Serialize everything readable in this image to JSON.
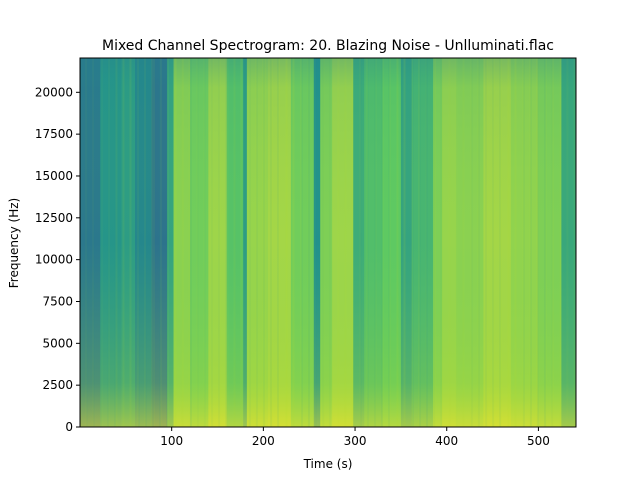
{
  "chart_data": {
    "type": "heatmap",
    "title": "Mixed Channel Spectrogram: 20. Blazing Noise - Unlluminati.flac",
    "xlabel": "Time (s)",
    "ylabel": "Frequency (Hz)",
    "xlim": [
      0,
      541
    ],
    "ylim": [
      0,
      22050
    ],
    "x_ticks": [
      100,
      200,
      300,
      400,
      500
    ],
    "x_tick_labels": [
      "100",
      "200",
      "300",
      "400",
      "500"
    ],
    "y_ticks": [
      0,
      2500,
      5000,
      7500,
      10000,
      12500,
      15000,
      17500,
      20000
    ],
    "y_tick_labels": [
      "0",
      "2500",
      "5000",
      "7500",
      "10000",
      "12500",
      "15000",
      "17500",
      "20000"
    ],
    "colormap": "viridis",
    "grid": false,
    "legend": "none",
    "time_segments": [
      {
        "start": 0,
        "end": 22,
        "level": 0.4
      },
      {
        "start": 22,
        "end": 45,
        "level": 0.52
      },
      {
        "start": 45,
        "end": 60,
        "level": 0.55
      },
      {
        "start": 60,
        "end": 78,
        "level": 0.46
      },
      {
        "start": 78,
        "end": 95,
        "level": 0.38
      },
      {
        "start": 95,
        "end": 102,
        "level": 0.58
      },
      {
        "start": 102,
        "end": 120,
        "level": 0.82
      },
      {
        "start": 120,
        "end": 140,
        "level": 0.78
      },
      {
        "start": 140,
        "end": 160,
        "level": 0.85
      },
      {
        "start": 160,
        "end": 178,
        "level": 0.72
      },
      {
        "start": 178,
        "end": 182,
        "level": 0.55
      },
      {
        "start": 182,
        "end": 205,
        "level": 0.84
      },
      {
        "start": 205,
        "end": 230,
        "level": 0.86
      },
      {
        "start": 230,
        "end": 255,
        "level": 0.78
      },
      {
        "start": 255,
        "end": 262,
        "level": 0.5
      },
      {
        "start": 262,
        "end": 275,
        "level": 0.8
      },
      {
        "start": 275,
        "end": 298,
        "level": 0.85
      },
      {
        "start": 298,
        "end": 310,
        "level": 0.62
      },
      {
        "start": 310,
        "end": 330,
        "level": 0.7
      },
      {
        "start": 330,
        "end": 350,
        "level": 0.75
      },
      {
        "start": 350,
        "end": 362,
        "level": 0.58
      },
      {
        "start": 362,
        "end": 385,
        "level": 0.66
      },
      {
        "start": 385,
        "end": 395,
        "level": 0.8
      },
      {
        "start": 395,
        "end": 410,
        "level": 0.84
      },
      {
        "start": 410,
        "end": 440,
        "level": 0.82
      },
      {
        "start": 440,
        "end": 470,
        "level": 0.86
      },
      {
        "start": 470,
        "end": 500,
        "level": 0.83
      },
      {
        "start": 500,
        "end": 525,
        "level": 0.8
      },
      {
        "start": 525,
        "end": 541,
        "level": 0.6
      }
    ]
  }
}
